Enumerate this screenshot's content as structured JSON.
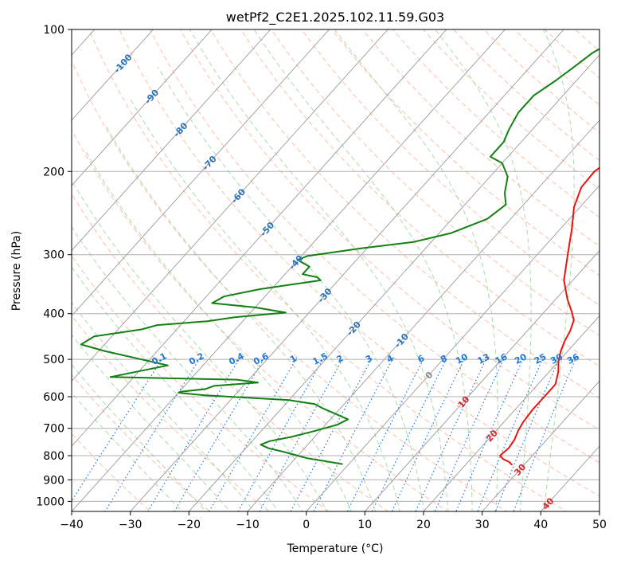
{
  "chart_data": {
    "type": "line",
    "title": "wetPf2_C2E1.2025.102.11.59.G03",
    "xlabel": "Temperature (°C)",
    "ylabel": "Pressure (hPa)",
    "xlim": [
      -40,
      50
    ],
    "ylim": [
      1050,
      100
    ],
    "y_scale": "log",
    "grid": true,
    "x_ticks": [
      -40,
      -30,
      -20,
      -10,
      0,
      10,
      20,
      30,
      40,
      50
    ],
    "y_ticks": [
      100,
      200,
      300,
      400,
      500,
      600,
      700,
      800,
      900,
      1000
    ],
    "colors": {
      "temperature": "#e8140e",
      "dewpoint": "#128012",
      "dry_adiabat": "#ff9b7a",
      "moist_adiabat": "#8fcf8f",
      "mixing_ratio": "#1f77d4",
      "skewed_isotherm": "#999999",
      "isotherm_label": "#2a72b8",
      "warm_isotherm_label": "#d62728",
      "zero_isotherm_label": "#888888"
    },
    "series": [
      {
        "color": "#e8140e",
        "points": [
          [
            28,
            837
          ],
          [
            27,
            825
          ],
          [
            25.5,
            813
          ],
          [
            24.5,
            800
          ],
          [
            24.8,
            770
          ],
          [
            24.5,
            740
          ],
          [
            23.8,
            710
          ],
          [
            23.3,
            680
          ],
          [
            23.0,
            640
          ],
          [
            23.0,
            600
          ],
          [
            23.0,
            565
          ],
          [
            21.5,
            530
          ],
          [
            20.0,
            505
          ],
          [
            18.8,
            480
          ],
          [
            17.9,
            456
          ],
          [
            17.3,
            435
          ],
          [
            16.3,
            413
          ],
          [
            14.5,
            395
          ],
          [
            12.0,
            373
          ],
          [
            8.5,
            340
          ],
          [
            5.2,
            300
          ],
          [
            2.0,
            265
          ],
          [
            -1.0,
            238
          ],
          [
            -2.8,
            216
          ],
          [
            -3.0,
            200
          ],
          [
            -2.0,
            188
          ],
          [
            -0.5,
            178
          ],
          [
            0.0,
            162
          ],
          [
            0.2,
            150
          ],
          [
            -1.0,
            137
          ],
          [
            -2.0,
            128
          ],
          [
            -2.8,
            123
          ],
          [
            -3.2,
            117
          ],
          [
            -2.5,
            110
          ],
          [
            -2.0,
            105
          ],
          [
            -1.4,
            100
          ]
        ]
      },
      {
        "color": "#128012",
        "points": [
          [
            -1,
            834
          ],
          [
            -5,
            820
          ],
          [
            -8,
            810
          ],
          [
            -11,
            795
          ],
          [
            -13,
            785
          ],
          [
            -16,
            772
          ],
          [
            -18,
            758
          ],
          [
            -17,
            745
          ],
          [
            -14,
            730
          ],
          [
            -11,
            710
          ],
          [
            -8,
            688
          ],
          [
            -7,
            670
          ],
          [
            -10,
            652
          ],
          [
            -13,
            635
          ],
          [
            -15,
            622
          ],
          [
            -20,
            610
          ],
          [
            -35,
            596
          ],
          [
            -39,
            590
          ],
          [
            -40,
            588
          ],
          [
            -39.5,
            585
          ],
          [
            -36,
            578
          ],
          [
            -35,
            569
          ],
          [
            -28,
            560
          ],
          [
            -32,
            552
          ],
          [
            -54,
            545
          ],
          [
            -46,
            515
          ],
          [
            -59,
            480
          ],
          [
            -64,
            465
          ],
          [
            -63,
            447
          ],
          [
            -56,
            432
          ],
          [
            -54,
            423
          ],
          [
            -46,
            415
          ],
          [
            -42,
            407
          ],
          [
            -34,
            398
          ],
          [
            -40,
            388
          ],
          [
            -48,
            380
          ],
          [
            -47,
            368
          ],
          [
            -42,
            355
          ],
          [
            -33,
            340
          ],
          [
            -34,
            335
          ],
          [
            -37,
            330
          ],
          [
            -37,
            318
          ],
          [
            -40,
            308
          ],
          [
            -39,
            302
          ],
          [
            -31,
            291
          ],
          [
            -23,
            282
          ],
          [
            -18,
            270
          ],
          [
            -14,
            252
          ],
          [
            -13,
            235
          ],
          [
            -15,
            222
          ],
          [
            -17,
            205
          ],
          [
            -20,
            192
          ],
          [
            -23,
            186
          ],
          [
            -23,
            178
          ],
          [
            -23,
            173
          ],
          [
            -24,
            163
          ],
          [
            -25,
            150
          ],
          [
            -25,
            138
          ],
          [
            -23.5,
            128
          ],
          [
            -22.5,
            120
          ],
          [
            -21.5,
            112
          ],
          [
            -19.5,
            105
          ],
          [
            -17.5,
            100
          ]
        ]
      }
    ],
    "mixing_ratio_labels": [
      "0.1",
      "0.2",
      "0.4",
      "0.6",
      "1",
      "1.5",
      "2",
      "3",
      "4",
      "6",
      "8",
      "10",
      "13",
      "16",
      "20",
      "25",
      "30",
      "36"
    ],
    "mixing_ratio_values": [
      0.1,
      0.2,
      0.4,
      0.6,
      1,
      1.5,
      2,
      3,
      4,
      6,
      8,
      10,
      13,
      16,
      20,
      25,
      30,
      36
    ],
    "isotherm_labels": [
      "-100",
      "-90",
      "-80",
      "-70",
      "-60",
      "-50",
      "-40",
      "-30",
      "-20",
      "-10",
      "0",
      "10",
      "20",
      "30",
      "40"
    ],
    "isotherm_values": [
      -100,
      -90,
      -80,
      -70,
      -60,
      -50,
      -40,
      -30,
      -20,
      -10,
      0,
      10,
      20,
      30,
      40
    ]
  }
}
